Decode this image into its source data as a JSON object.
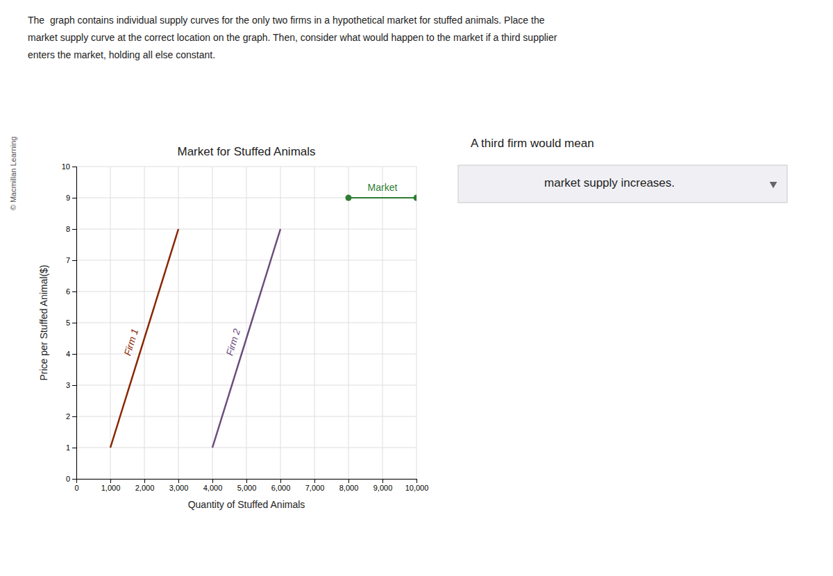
{
  "chart_data": {
    "type": "line",
    "title": "Market for Stuffed Animals",
    "x_label": "Quantity of Stuffed Animals",
    "y_label": "Price per Stuffed Animal($)",
    "xlim": [
      0,
      10000
    ],
    "xticks": [
      0,
      {
        "value": 1000,
        "label": "1,000"
      },
      {
        "value": 2000,
        "label": "2,000"
      },
      {
        "value": 3000,
        "label": "3,000"
      },
      {
        "value": 4000,
        "label": "4,000"
      },
      {
        "value": 5000,
        "label": "5,000"
      },
      {
        "value": 6000,
        "label": "6,000"
      },
      {
        "value": 7000,
        "label": "7,000"
      },
      {
        "value": 8000,
        "label": "8,000"
      },
      {
        "value": 9000,
        "label": "9,000"
      },
      {
        "value": 10000,
        "label": "10,000"
      }
    ],
    "ylim": [
      0,
      10
    ],
    "yticks": [
      0,
      1,
      2,
      3,
      4,
      5,
      6,
      7,
      8,
      9,
      10
    ],
    "grid": true,
    "series": [
      {
        "name": "Firm 1",
        "color": "#8B2500",
        "x": [
          1000,
          3000
        ],
        "values": [
          1,
          8
        ]
      },
      {
        "name": "Firm 2",
        "color": "#6A4C7C",
        "x": [
          4000,
          6000
        ],
        "values": [
          1,
          8
        ]
      },
      {
        "name": "Market",
        "color": "#2E7D32",
        "x": [
          8000,
          10000
        ],
        "values": [
          9,
          9
        ],
        "marker": "circle"
      }
    ],
    "annotations": [
      "The  graph contains individual supply curves for the only two firms in a hypothetical market for stuffed animals. Place the",
      "market supply curve at the correct location on the graph. Then, consider what would happen to the market if a third supplier",
      "enters the market, holding all else constant.",
      "A third firm would mean",
      "market supply increases.",
      "© Macmillan Learning"
    ]
  }
}
